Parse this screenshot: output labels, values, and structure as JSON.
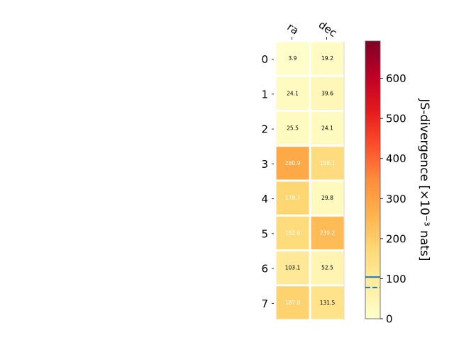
{
  "chart_data": {
    "type": "heatmap",
    "columns": [
      "ra",
      "dec"
    ],
    "rows": [
      "0",
      "1",
      "2",
      "3",
      "4",
      "5",
      "6",
      "7"
    ],
    "values": [
      [
        3.9,
        19.2
      ],
      [
        24.1,
        39.6
      ],
      [
        25.5,
        24.1
      ],
      [
        280.9,
        158.1
      ],
      [
        178.7,
        29.8
      ],
      [
        162.6,
        239.2
      ],
      [
        103.1,
        52.5
      ],
      [
        187.8,
        131.5
      ]
    ],
    "value_labels": [
      [
        "3.9",
        "19.2"
      ],
      [
        "24.1",
        "39.6"
      ],
      [
        "25.5",
        "24.1"
      ],
      [
        "280.9",
        "158.1"
      ],
      [
        "178.7",
        "29.8"
      ],
      [
        "162.6",
        "239.2"
      ],
      [
        "103.1",
        "52.5"
      ],
      [
        "187.8",
        "131.5"
      ]
    ],
    "colorbar": {
      "label": "JS-divergence [×10⁻³ nats]",
      "range": [
        0,
        693
      ],
      "ticks": [
        "0",
        "100",
        "200",
        "300",
        "400",
        "500",
        "600"
      ],
      "tick_values": [
        0,
        100,
        200,
        300,
        400,
        500,
        600
      ],
      "colormap": "YlOrRd",
      "solid_line_value": 104,
      "dashed_line_value": 78,
      "line_color": "#1f77b4"
    },
    "label_text_dark_color": "#000000",
    "label_text_light_color": "#ffffff",
    "light_label_threshold": 150
  }
}
